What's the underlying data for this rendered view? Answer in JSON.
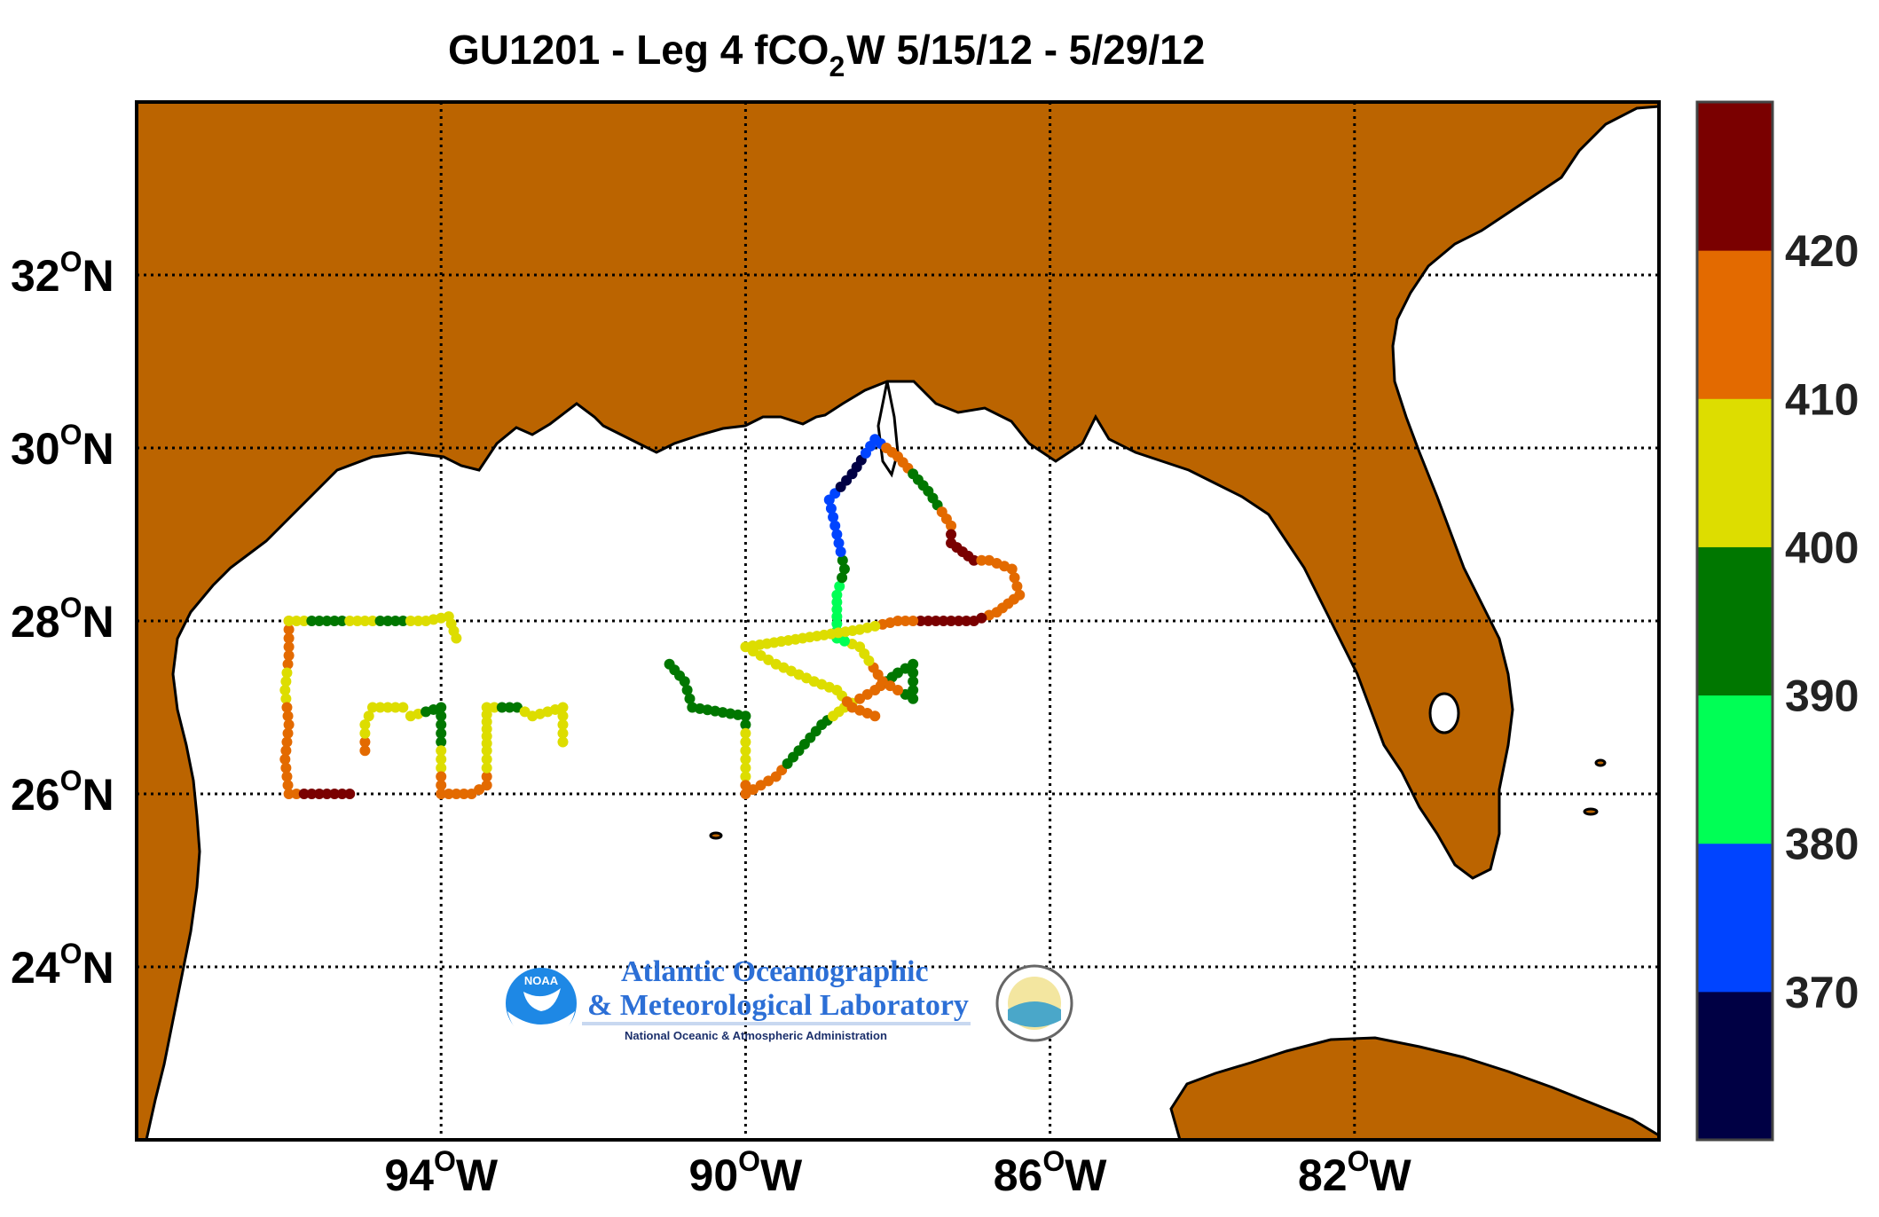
{
  "map": {
    "title_prefix": "GU1201 - Leg 4 fCO",
    "title_subscript": "2",
    "title_suffix": "W 5/15/12 - 5/29/12",
    "colors": {
      "land": "#bb6400",
      "ocean": "#ffffff",
      "coast": "#000000",
      "grid": "#000000"
    },
    "lat_ticks": [
      {
        "value": 32,
        "num": "32",
        "deg": "O",
        "hemi": "N"
      },
      {
        "value": 30,
        "num": "30",
        "deg": "O",
        "hemi": "N"
      },
      {
        "value": 28,
        "num": "28",
        "deg": "O",
        "hemi": "N"
      },
      {
        "value": 26,
        "num": "26",
        "deg": "O",
        "hemi": "N"
      },
      {
        "value": 24,
        "num": "24",
        "deg": "O",
        "hemi": "N"
      }
    ],
    "lon_ticks": [
      {
        "value": -94,
        "num": "94",
        "deg": "O",
        "hemi": "W"
      },
      {
        "value": -90,
        "num": "90",
        "deg": "O",
        "hemi": "W"
      },
      {
        "value": -86,
        "num": "86",
        "deg": "O",
        "hemi": "W"
      },
      {
        "value": -82,
        "num": "82",
        "deg": "O",
        "hemi": "W"
      }
    ],
    "extent": {
      "lon_min": -98,
      "lon_max": -78,
      "lat_min": 22,
      "lat_max": 34
    }
  },
  "colorbar": {
    "bins": [
      {
        "color": "#000044"
      },
      {
        "color": "#0044ff"
      },
      {
        "color": "#00ff55"
      },
      {
        "color": "#007700"
      },
      {
        "color": "#dddd00"
      },
      {
        "color": "#e36a00"
      },
      {
        "color": "#7a0000"
      }
    ],
    "labels": [
      "370",
      "380",
      "390",
      "400",
      "410",
      "420"
    ],
    "label_values": [
      370,
      380,
      390,
      400,
      410,
      420
    ],
    "range": [
      360,
      430
    ]
  },
  "chart_data": {
    "type": "scatter",
    "x_label": "longitude",
    "y_label": "latitude",
    "value_label": "fCO2W",
    "segments": [
      {
        "name": "west-grid",
        "points": [
          [
            -96.0,
            28.0,
            412
          ],
          [
            -96.0,
            27.6,
            414
          ],
          [
            -96.05,
            27.2,
            402
          ],
          [
            -96.0,
            26.8,
            414
          ],
          [
            -96.05,
            26.4,
            410
          ],
          [
            -96.0,
            26.0,
            416
          ],
          [
            -95.7,
            26.0,
            424
          ],
          [
            -95.4,
            26.0,
            426
          ],
          [
            -95.2,
            26.0,
            424
          ],
          [
            -96.0,
            28.0,
            404
          ],
          [
            -95.5,
            28.0,
            392
          ],
          [
            -95.0,
            28.0,
            406
          ],
          [
            -94.6,
            28.0,
            394
          ],
          [
            -94.2,
            28.0,
            404
          ],
          [
            -93.9,
            28.05,
            406
          ],
          [
            -93.8,
            27.8,
            404
          ]
        ]
      },
      {
        "name": "middle-grid",
        "points": [
          [
            -95.0,
            26.5,
            412
          ],
          [
            -95.0,
            26.8,
            402
          ],
          [
            -94.9,
            27.0,
            404
          ],
          [
            -94.5,
            27.0,
            404
          ],
          [
            -94.4,
            26.9,
            402
          ],
          [
            -94.0,
            27.0,
            396
          ],
          [
            -94.0,
            26.6,
            394
          ],
          [
            -94.0,
            26.4,
            402
          ],
          [
            -94.0,
            26.0,
            414
          ],
          [
            -93.6,
            26.0,
            416
          ],
          [
            -93.4,
            26.1,
            414
          ],
          [
            -93.4,
            26.5,
            402
          ],
          [
            -93.4,
            27.0,
            402
          ],
          [
            -93.0,
            27.0,
            396
          ],
          [
            -92.8,
            26.9,
            404
          ],
          [
            -92.4,
            27.0,
            404
          ],
          [
            -92.4,
            26.6,
            404
          ]
        ]
      },
      {
        "name": "central-track",
        "points": [
          [
            -91.0,
            27.5,
            394
          ],
          [
            -90.8,
            27.3,
            394
          ],
          [
            -90.7,
            27.0,
            394
          ],
          [
            -90.0,
            26.9,
            396
          ],
          [
            -90.0,
            26.6,
            402
          ],
          [
            -90.0,
            26.3,
            404
          ],
          [
            -90.0,
            26.0,
            414
          ],
          [
            -89.6,
            26.2,
            412
          ],
          [
            -89.3,
            26.5,
            396
          ],
          [
            -89.0,
            26.8,
            396
          ],
          [
            -88.7,
            27.0,
            404
          ],
          [
            -88.3,
            27.2,
            414
          ],
          [
            -88.0,
            27.4,
            394
          ],
          [
            -87.8,
            27.5,
            396
          ],
          [
            -87.8,
            27.1,
            394
          ],
          [
            -88.2,
            27.3,
            412
          ],
          [
            -88.5,
            27.7,
            404
          ],
          [
            -88.8,
            27.8,
            384
          ],
          [
            -88.8,
            28.3,
            384
          ],
          [
            -88.7,
            28.6,
            394
          ],
          [
            -88.8,
            29.0,
            378
          ],
          [
            -88.9,
            29.4,
            372
          ],
          [
            -88.6,
            29.7,
            366
          ],
          [
            -88.3,
            30.1,
            370
          ],
          [
            -88.0,
            29.9,
            412
          ],
          [
            -87.6,
            29.5,
            394
          ],
          [
            -87.3,
            29.1,
            416
          ],
          [
            -87.3,
            28.9,
            424
          ],
          [
            -87.0,
            28.7,
            426
          ],
          [
            -86.8,
            28.7,
            416
          ],
          [
            -86.5,
            28.6,
            414
          ],
          [
            -86.4,
            28.3,
            416
          ],
          [
            -86.7,
            28.1,
            414
          ],
          [
            -87.0,
            28.0,
            426
          ],
          [
            -87.5,
            28.0,
            426
          ],
          [
            -88.0,
            28.0,
            412
          ],
          [
            -88.5,
            27.9,
            406
          ],
          [
            -90.0,
            27.7,
            404
          ],
          [
            -89.6,
            27.5,
            404
          ],
          [
            -89.1,
            27.3,
            404
          ],
          [
            -88.8,
            27.2,
            404
          ],
          [
            -88.6,
            27.0,
            414
          ],
          [
            -88.3,
            26.9,
            414
          ]
        ]
      }
    ]
  }
}
